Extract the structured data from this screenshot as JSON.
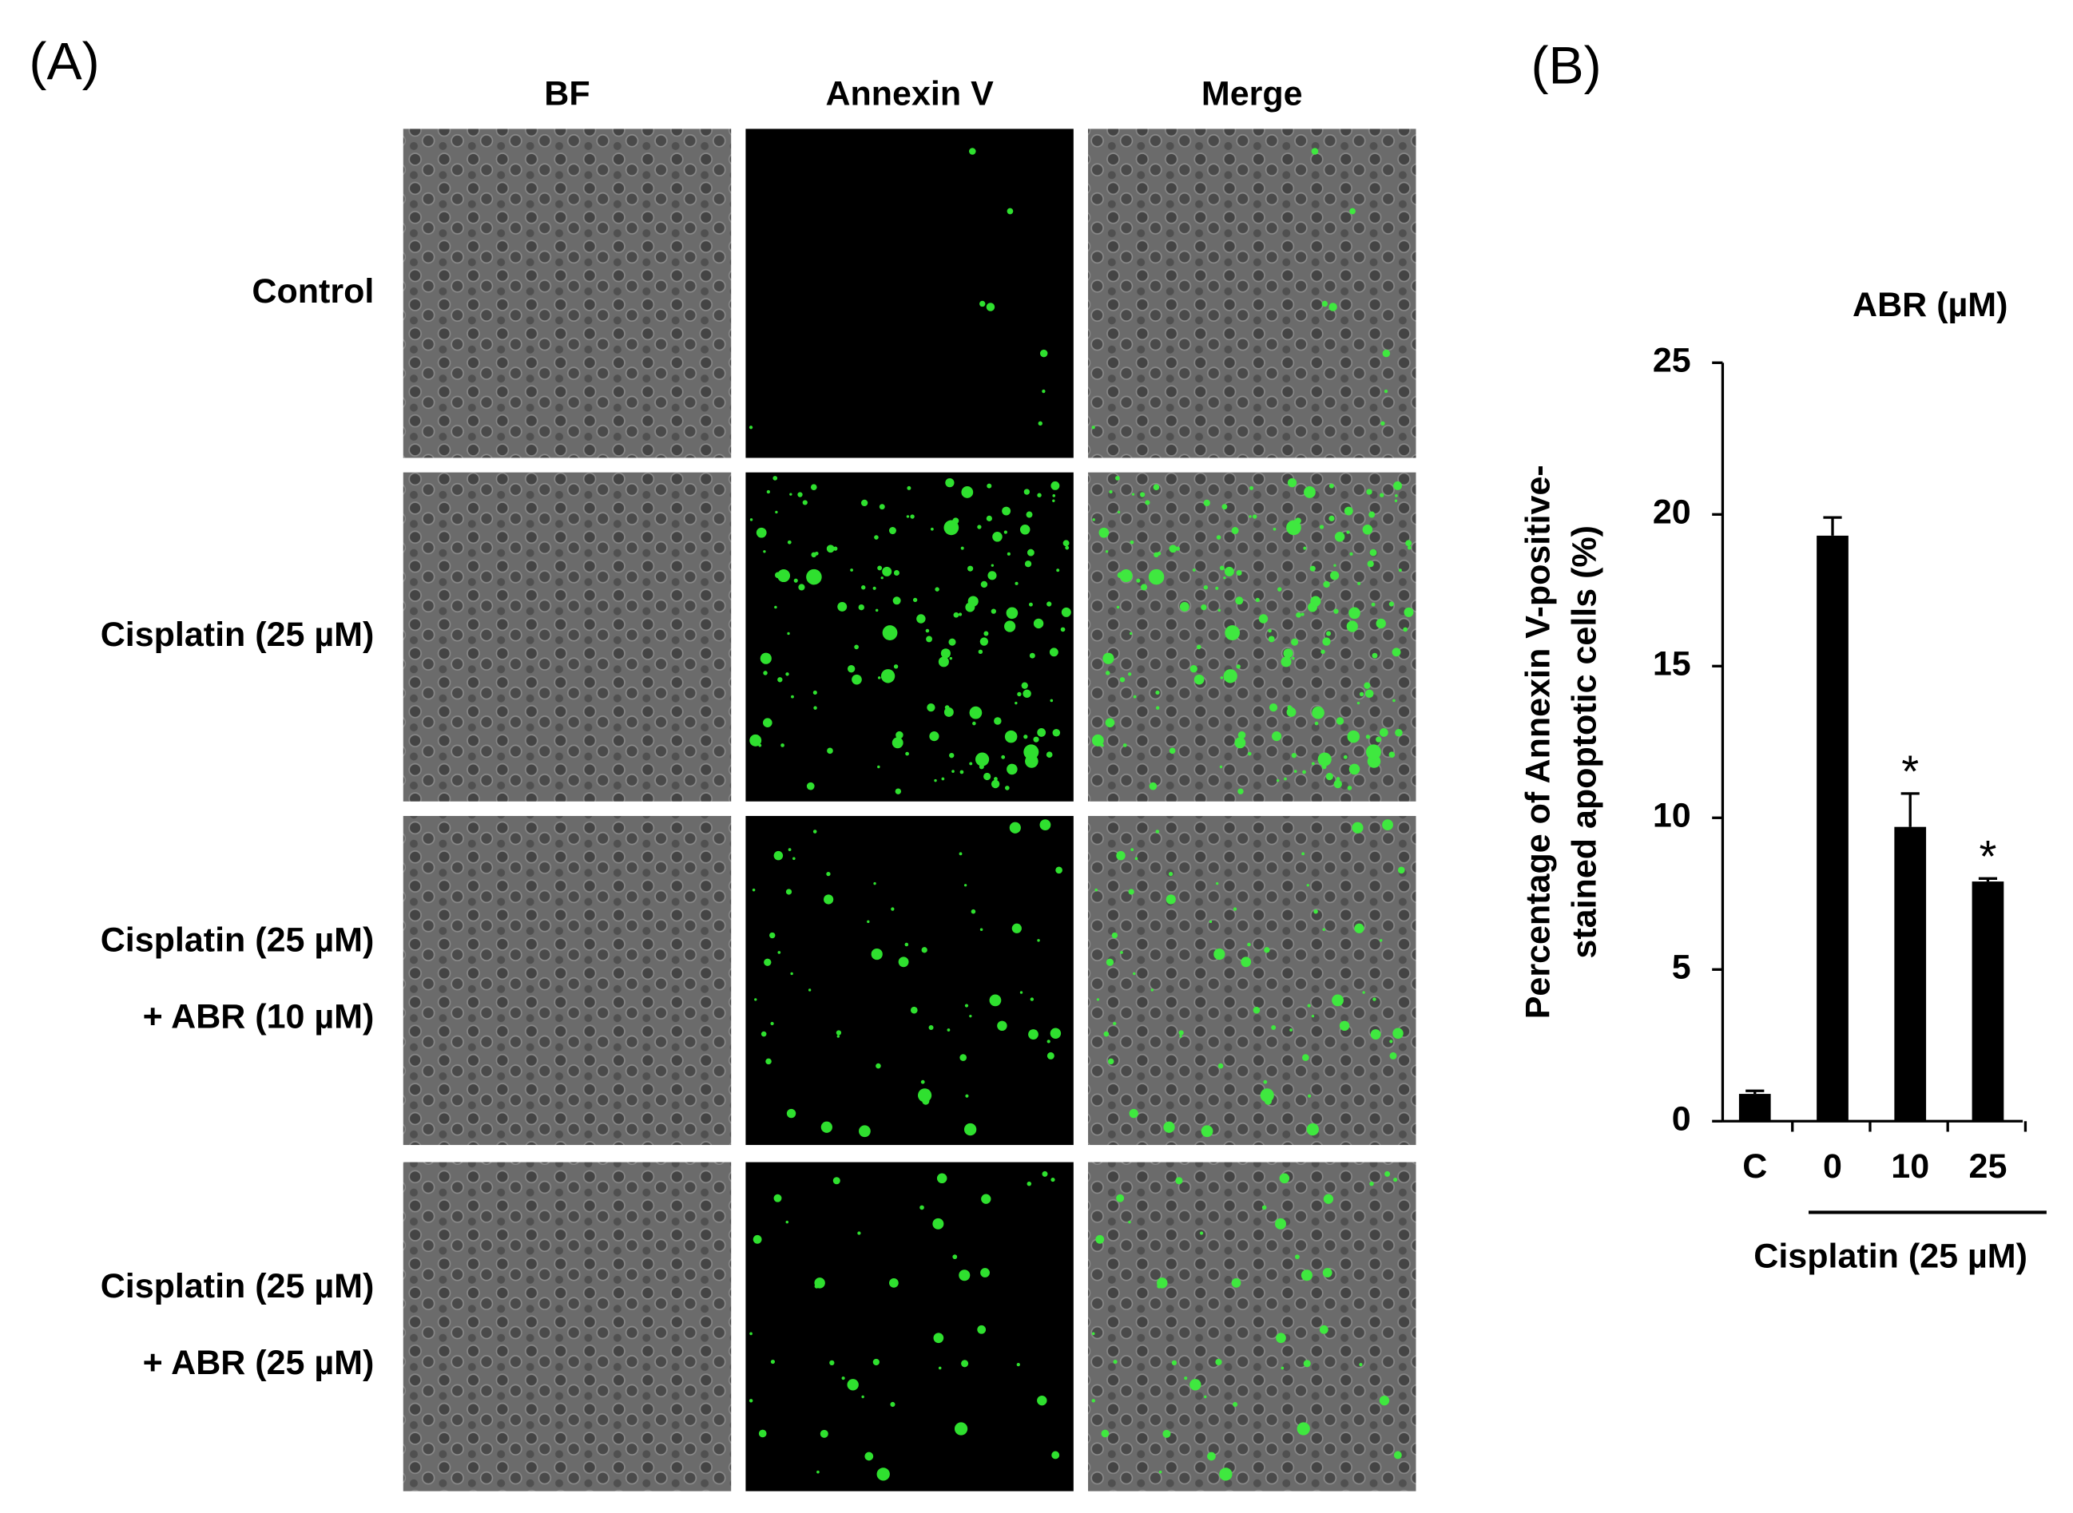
{
  "panel_a": {
    "label": "(A)",
    "columns": [
      "BF",
      "Annexin V",
      "Merge"
    ],
    "rows": [
      {
        "lines": [
          "Control"
        ]
      },
      {
        "lines": [
          "Cisplatin (25 µM)"
        ]
      },
      {
        "lines": [
          "Cisplatin (25 µM)",
          "+ ABR (10 µM)"
        ]
      },
      {
        "lines": [
          "Cisplatin (25 µM)",
          "+ ABR (25 µM)"
        ]
      }
    ]
  },
  "chart_data": {
    "type": "bar",
    "panel_label": "(B)",
    "y_label": [
      "Percentage of Annexin V-positive-",
      "stained apoptotic cells (%)"
    ],
    "annotation": "ABR (µM)",
    "group_label": "Cisplatin  (25 µM)",
    "categories": [
      "C",
      "0",
      "10",
      "25"
    ],
    "values": [
      0.9,
      19.3,
      9.7,
      7.9
    ],
    "errors": [
      0.1,
      0.6,
      1.1,
      0.1
    ],
    "markers": [
      null,
      null,
      "*",
      "*"
    ],
    "color": "#000000",
    "ylim": [
      0,
      25
    ],
    "yticks": [
      0,
      5,
      10,
      15,
      20,
      25
    ]
  }
}
